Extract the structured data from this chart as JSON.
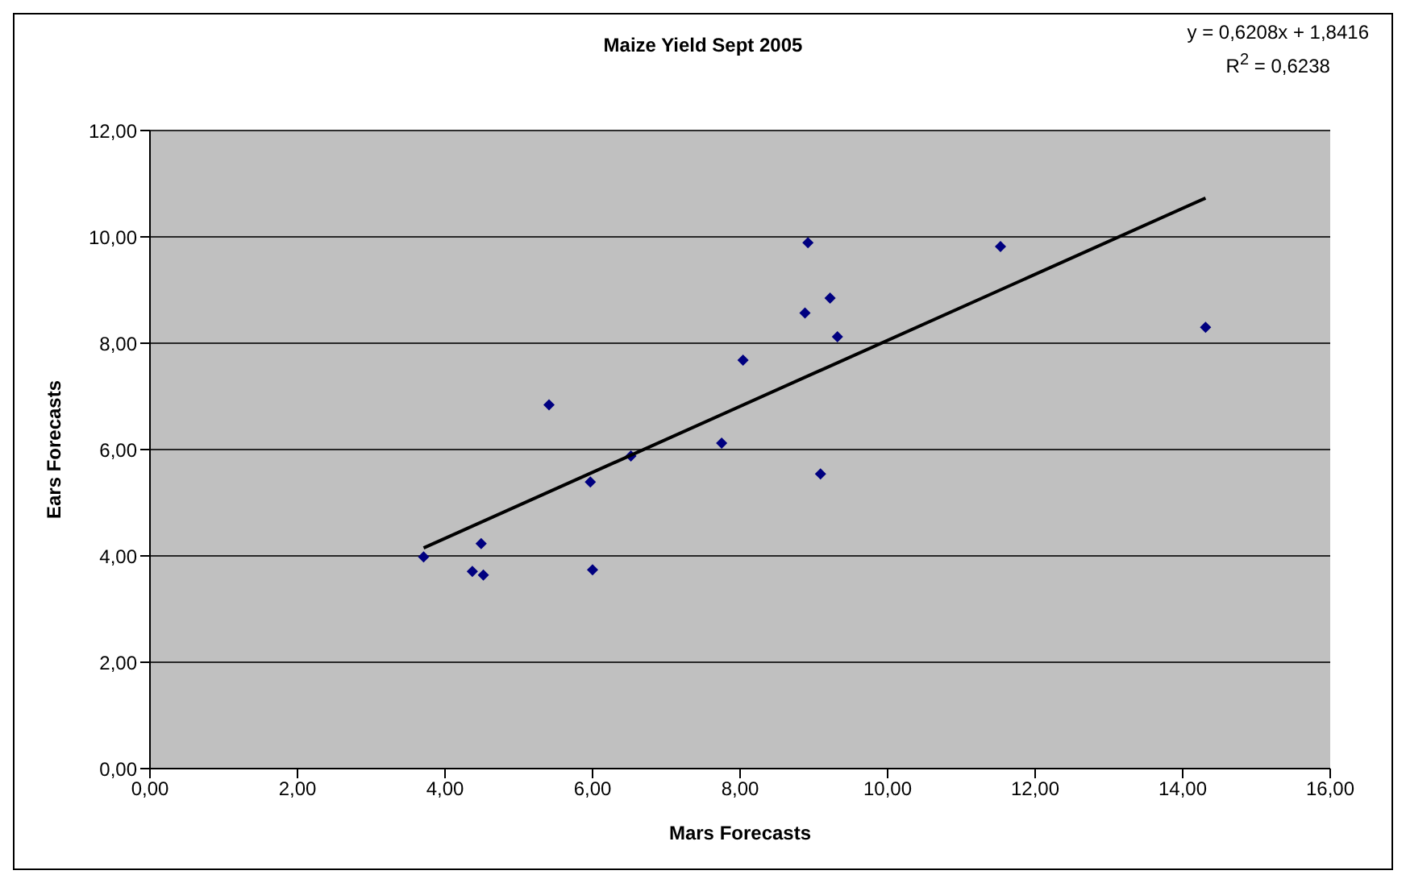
{
  "chart_data": {
    "type": "scatter",
    "title": "Maize Yield Sept 2005",
    "xlabel": "Mars Forecasts",
    "ylabel": "Ears Forecasts",
    "annotations": [
      "y = 0,6208x + 1,8416",
      "R$^{2}$ = 0,6238"
    ],
    "series": [
      {
        "color": "#000080",
        "marker": "diamond",
        "x": [
          3.71,
          4.37,
          4.49,
          4.52,
          5.41,
          5.97,
          6.0,
          6.52,
          7.75,
          8.04,
          8.88,
          8.92,
          9.09,
          9.22,
          9.32,
          11.53,
          14.31
        ],
        "values": [
          3.98,
          3.71,
          4.23,
          3.64,
          6.84,
          5.39,
          3.74,
          5.88,
          6.12,
          7.68,
          8.57,
          9.89,
          5.54,
          8.85,
          8.12,
          9.82,
          8.3
        ]
      },
      {
        "type": "line",
        "color": "#000000",
        "marker": "none",
        "x": [
          3.71,
          14.31
        ],
        "values": [
          4.15,
          10.73
        ]
      }
    ],
    "xlim": [
      0,
      16
    ],
    "xticks": [
      {
        "value": 0,
        "label": "0,00"
      },
      {
        "value": 2,
        "label": "2,00"
      },
      {
        "value": 4,
        "label": "4,00"
      },
      {
        "value": 6,
        "label": "6,00"
      },
      {
        "value": 8,
        "label": "8,00"
      },
      {
        "value": 10,
        "label": "10,00"
      },
      {
        "value": 12,
        "label": "12,00"
      },
      {
        "value": 14,
        "label": "14,00"
      },
      {
        "value": 16,
        "label": "16,00"
      }
    ],
    "ylim": [
      0,
      12
    ],
    "yticks": [
      {
        "value": 0,
        "label": "0,00"
      },
      {
        "value": 2,
        "label": "2,00"
      },
      {
        "value": 4,
        "label": "4,00"
      },
      {
        "value": 6,
        "label": "6,00"
      },
      {
        "value": 8,
        "label": "8,00"
      },
      {
        "value": 10,
        "label": "10,00"
      },
      {
        "value": 12,
        "label": "12,00"
      }
    ],
    "grid": "y"
  }
}
